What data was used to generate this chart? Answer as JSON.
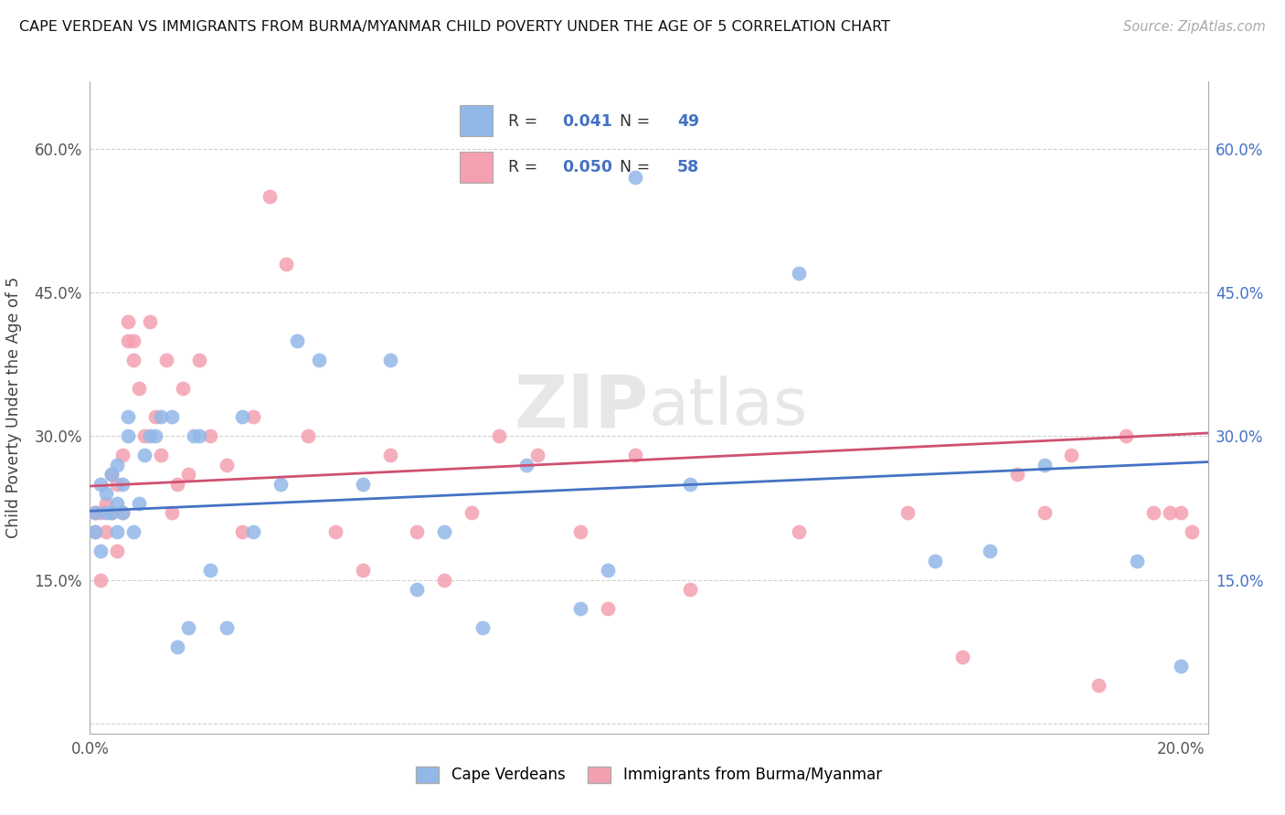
{
  "title": "CAPE VERDEAN VS IMMIGRANTS FROM BURMA/MYANMAR CHILD POVERTY UNDER THE AGE OF 5 CORRELATION CHART",
  "source": "Source: ZipAtlas.com",
  "ylabel": "Child Poverty Under the Age of 5",
  "xlim": [
    0.0,
    0.205
  ],
  "ylim": [
    -0.01,
    0.67
  ],
  "x_ticks": [
    0.0,
    0.05,
    0.1,
    0.15,
    0.2
  ],
  "x_tick_labels": [
    "0.0%",
    "",
    "",
    "",
    "20.0%"
  ],
  "y_ticks": [
    0.0,
    0.15,
    0.3,
    0.45,
    0.6
  ],
  "y_tick_labels": [
    "",
    "15.0%",
    "30.0%",
    "45.0%",
    "60.0%"
  ],
  "legend_labels": [
    "Cape Verdeans",
    "Immigrants from Burma/Myanmar"
  ],
  "legend_r": [
    "0.041",
    "0.050"
  ],
  "legend_n": [
    "49",
    "58"
  ],
  "color_blue": "#92b8e8",
  "color_pink": "#f4a0b0",
  "line_blue": "#4472c4",
  "line_pink": "#d05070",
  "watermark": "ZIPatlas",
  "blue_x": [
    0.001,
    0.001,
    0.002,
    0.002,
    0.003,
    0.003,
    0.004,
    0.004,
    0.005,
    0.005,
    0.005,
    0.006,
    0.006,
    0.007,
    0.007,
    0.008,
    0.009,
    0.01,
    0.011,
    0.012,
    0.013,
    0.015,
    0.016,
    0.018,
    0.019,
    0.02,
    0.022,
    0.025,
    0.028,
    0.03,
    0.035,
    0.038,
    0.042,
    0.05,
    0.055,
    0.06,
    0.065,
    0.072,
    0.08,
    0.09,
    0.095,
    0.1,
    0.11,
    0.13,
    0.155,
    0.165,
    0.175,
    0.192,
    0.2
  ],
  "blue_y": [
    0.2,
    0.22,
    0.18,
    0.25,
    0.22,
    0.24,
    0.22,
    0.26,
    0.2,
    0.23,
    0.27,
    0.22,
    0.25,
    0.3,
    0.32,
    0.2,
    0.23,
    0.28,
    0.3,
    0.3,
    0.32,
    0.32,
    0.08,
    0.1,
    0.3,
    0.3,
    0.16,
    0.1,
    0.32,
    0.2,
    0.25,
    0.4,
    0.38,
    0.25,
    0.38,
    0.14,
    0.2,
    0.1,
    0.27,
    0.12,
    0.16,
    0.57,
    0.25,
    0.47,
    0.17,
    0.18,
    0.27,
    0.17,
    0.06
  ],
  "pink_x": [
    0.001,
    0.001,
    0.002,
    0.002,
    0.003,
    0.003,
    0.004,
    0.004,
    0.005,
    0.005,
    0.006,
    0.006,
    0.007,
    0.007,
    0.008,
    0.008,
    0.009,
    0.01,
    0.011,
    0.012,
    0.013,
    0.014,
    0.015,
    0.016,
    0.017,
    0.018,
    0.02,
    0.022,
    0.025,
    0.028,
    0.03,
    0.033,
    0.036,
    0.04,
    0.045,
    0.05,
    0.055,
    0.06,
    0.065,
    0.07,
    0.075,
    0.082,
    0.09,
    0.095,
    0.1,
    0.11,
    0.13,
    0.15,
    0.16,
    0.17,
    0.175,
    0.18,
    0.185,
    0.19,
    0.195,
    0.198,
    0.2,
    0.202
  ],
  "pink_y": [
    0.22,
    0.2,
    0.15,
    0.22,
    0.2,
    0.23,
    0.22,
    0.26,
    0.18,
    0.25,
    0.28,
    0.22,
    0.42,
    0.4,
    0.4,
    0.38,
    0.35,
    0.3,
    0.42,
    0.32,
    0.28,
    0.38,
    0.22,
    0.25,
    0.35,
    0.26,
    0.38,
    0.3,
    0.27,
    0.2,
    0.32,
    0.55,
    0.48,
    0.3,
    0.2,
    0.16,
    0.28,
    0.2,
    0.15,
    0.22,
    0.3,
    0.28,
    0.2,
    0.12,
    0.28,
    0.14,
    0.2,
    0.22,
    0.07,
    0.26,
    0.22,
    0.28,
    0.04,
    0.3,
    0.22,
    0.22,
    0.22,
    0.2
  ]
}
